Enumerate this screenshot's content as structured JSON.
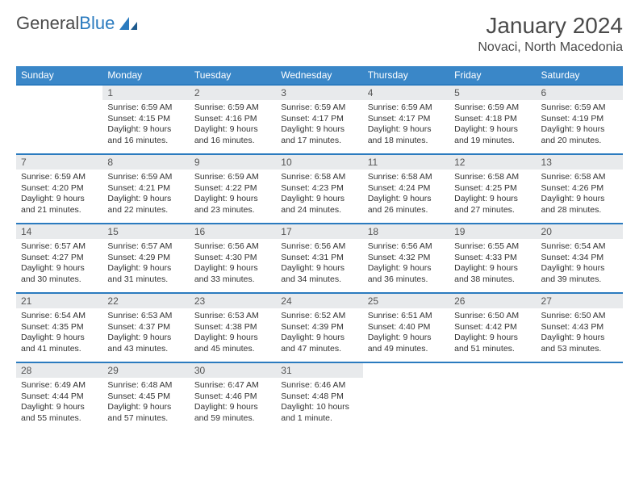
{
  "logo": {
    "text_a": "General",
    "text_b": "Blue"
  },
  "title": "January 2024",
  "location": "Novaci, North Macedonia",
  "colors": {
    "header_bg": "#3a87c8",
    "header_text": "#ffffff",
    "border": "#2b7bbf",
    "daynum_bg": "#e8eaec",
    "text": "#333333",
    "page_bg": "#ffffff"
  },
  "day_headers": [
    "Sunday",
    "Monday",
    "Tuesday",
    "Wednesday",
    "Thursday",
    "Friday",
    "Saturday"
  ],
  "weeks": [
    [
      {
        "n": "",
        "s": "",
        "e": "",
        "d": "",
        "empty": true
      },
      {
        "n": "1",
        "s": "Sunrise: 6:59 AM",
        "e": "Sunset: 4:15 PM",
        "d": "Daylight: 9 hours and 16 minutes."
      },
      {
        "n": "2",
        "s": "Sunrise: 6:59 AM",
        "e": "Sunset: 4:16 PM",
        "d": "Daylight: 9 hours and 16 minutes."
      },
      {
        "n": "3",
        "s": "Sunrise: 6:59 AM",
        "e": "Sunset: 4:17 PM",
        "d": "Daylight: 9 hours and 17 minutes."
      },
      {
        "n": "4",
        "s": "Sunrise: 6:59 AM",
        "e": "Sunset: 4:17 PM",
        "d": "Daylight: 9 hours and 18 minutes."
      },
      {
        "n": "5",
        "s": "Sunrise: 6:59 AM",
        "e": "Sunset: 4:18 PM",
        "d": "Daylight: 9 hours and 19 minutes."
      },
      {
        "n": "6",
        "s": "Sunrise: 6:59 AM",
        "e": "Sunset: 4:19 PM",
        "d": "Daylight: 9 hours and 20 minutes."
      }
    ],
    [
      {
        "n": "7",
        "s": "Sunrise: 6:59 AM",
        "e": "Sunset: 4:20 PM",
        "d": "Daylight: 9 hours and 21 minutes."
      },
      {
        "n": "8",
        "s": "Sunrise: 6:59 AM",
        "e": "Sunset: 4:21 PM",
        "d": "Daylight: 9 hours and 22 minutes."
      },
      {
        "n": "9",
        "s": "Sunrise: 6:59 AM",
        "e": "Sunset: 4:22 PM",
        "d": "Daylight: 9 hours and 23 minutes."
      },
      {
        "n": "10",
        "s": "Sunrise: 6:58 AM",
        "e": "Sunset: 4:23 PM",
        "d": "Daylight: 9 hours and 24 minutes."
      },
      {
        "n": "11",
        "s": "Sunrise: 6:58 AM",
        "e": "Sunset: 4:24 PM",
        "d": "Daylight: 9 hours and 26 minutes."
      },
      {
        "n": "12",
        "s": "Sunrise: 6:58 AM",
        "e": "Sunset: 4:25 PM",
        "d": "Daylight: 9 hours and 27 minutes."
      },
      {
        "n": "13",
        "s": "Sunrise: 6:58 AM",
        "e": "Sunset: 4:26 PM",
        "d": "Daylight: 9 hours and 28 minutes."
      }
    ],
    [
      {
        "n": "14",
        "s": "Sunrise: 6:57 AM",
        "e": "Sunset: 4:27 PM",
        "d": "Daylight: 9 hours and 30 minutes."
      },
      {
        "n": "15",
        "s": "Sunrise: 6:57 AM",
        "e": "Sunset: 4:29 PM",
        "d": "Daylight: 9 hours and 31 minutes."
      },
      {
        "n": "16",
        "s": "Sunrise: 6:56 AM",
        "e": "Sunset: 4:30 PM",
        "d": "Daylight: 9 hours and 33 minutes."
      },
      {
        "n": "17",
        "s": "Sunrise: 6:56 AM",
        "e": "Sunset: 4:31 PM",
        "d": "Daylight: 9 hours and 34 minutes."
      },
      {
        "n": "18",
        "s": "Sunrise: 6:56 AM",
        "e": "Sunset: 4:32 PM",
        "d": "Daylight: 9 hours and 36 minutes."
      },
      {
        "n": "19",
        "s": "Sunrise: 6:55 AM",
        "e": "Sunset: 4:33 PM",
        "d": "Daylight: 9 hours and 38 minutes."
      },
      {
        "n": "20",
        "s": "Sunrise: 6:54 AM",
        "e": "Sunset: 4:34 PM",
        "d": "Daylight: 9 hours and 39 minutes."
      }
    ],
    [
      {
        "n": "21",
        "s": "Sunrise: 6:54 AM",
        "e": "Sunset: 4:35 PM",
        "d": "Daylight: 9 hours and 41 minutes."
      },
      {
        "n": "22",
        "s": "Sunrise: 6:53 AM",
        "e": "Sunset: 4:37 PM",
        "d": "Daylight: 9 hours and 43 minutes."
      },
      {
        "n": "23",
        "s": "Sunrise: 6:53 AM",
        "e": "Sunset: 4:38 PM",
        "d": "Daylight: 9 hours and 45 minutes."
      },
      {
        "n": "24",
        "s": "Sunrise: 6:52 AM",
        "e": "Sunset: 4:39 PM",
        "d": "Daylight: 9 hours and 47 minutes."
      },
      {
        "n": "25",
        "s": "Sunrise: 6:51 AM",
        "e": "Sunset: 4:40 PM",
        "d": "Daylight: 9 hours and 49 minutes."
      },
      {
        "n": "26",
        "s": "Sunrise: 6:50 AM",
        "e": "Sunset: 4:42 PM",
        "d": "Daylight: 9 hours and 51 minutes."
      },
      {
        "n": "27",
        "s": "Sunrise: 6:50 AM",
        "e": "Sunset: 4:43 PM",
        "d": "Daylight: 9 hours and 53 minutes."
      }
    ],
    [
      {
        "n": "28",
        "s": "Sunrise: 6:49 AM",
        "e": "Sunset: 4:44 PM",
        "d": "Daylight: 9 hours and 55 minutes."
      },
      {
        "n": "29",
        "s": "Sunrise: 6:48 AM",
        "e": "Sunset: 4:45 PM",
        "d": "Daylight: 9 hours and 57 minutes."
      },
      {
        "n": "30",
        "s": "Sunrise: 6:47 AM",
        "e": "Sunset: 4:46 PM",
        "d": "Daylight: 9 hours and 59 minutes."
      },
      {
        "n": "31",
        "s": "Sunrise: 6:46 AM",
        "e": "Sunset: 4:48 PM",
        "d": "Daylight: 10 hours and 1 minute."
      },
      {
        "n": "",
        "s": "",
        "e": "",
        "d": "",
        "empty": true
      },
      {
        "n": "",
        "s": "",
        "e": "",
        "d": "",
        "empty": true
      },
      {
        "n": "",
        "s": "",
        "e": "",
        "d": "",
        "empty": true
      }
    ]
  ]
}
